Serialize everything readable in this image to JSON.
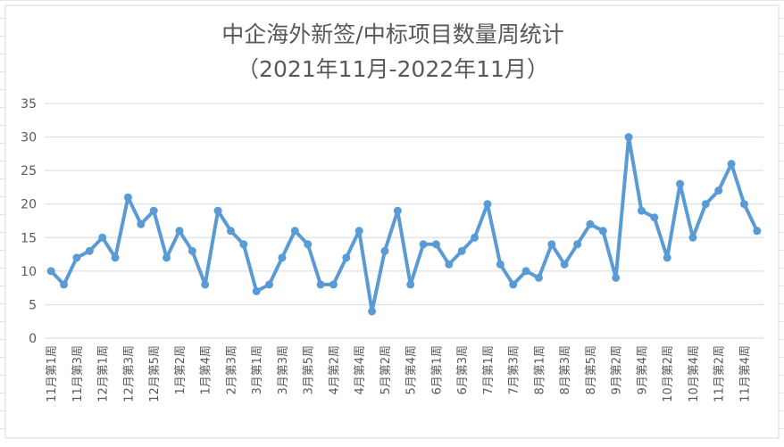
{
  "chart_data": {
    "type": "line",
    "title": "中企海外新签/中标项目数量周统计",
    "subtitle": "（2021年11月-2022年11月）",
    "xlabel": "",
    "ylabel": "",
    "ylim": [
      0,
      35
    ],
    "yticks": [
      0,
      5,
      10,
      15,
      20,
      25,
      30,
      35
    ],
    "grid": true,
    "legend": "none",
    "line_color": "#5B9BD5",
    "grid_color": "#D9D9D9",
    "x_tick_labels": [
      "11月第1周",
      "11月第3周",
      "12月第1周",
      "12月第3周",
      "12月第5周",
      "1月第2周",
      "1月第4周",
      "2月第3周",
      "3月第1周",
      "3月第3周",
      "3月第5周",
      "4月第2周",
      "4月第4周",
      "5月第2周",
      "5月第4周",
      "6月第1周",
      "6月第3周",
      "7月第1周",
      "7月第3周",
      "8月第1周",
      "8月第3周",
      "8月第5周",
      "9月第2周",
      "9月第4周",
      "10月第2周",
      "10月第4周",
      "11月第2周",
      "11月第4周"
    ],
    "values": [
      10,
      8,
      12,
      13,
      15,
      12,
      21,
      17,
      19,
      12,
      16,
      13,
      8,
      19,
      16,
      14,
      7,
      8,
      12,
      16,
      14,
      8,
      8,
      12,
      16,
      4,
      13,
      19,
      8,
      14,
      14,
      11,
      13,
      15,
      20,
      11,
      8,
      10,
      9,
      14,
      11,
      14,
      17,
      16,
      9,
      30,
      19,
      18,
      12,
      23,
      15,
      20,
      22,
      26,
      20,
      16
    ]
  }
}
